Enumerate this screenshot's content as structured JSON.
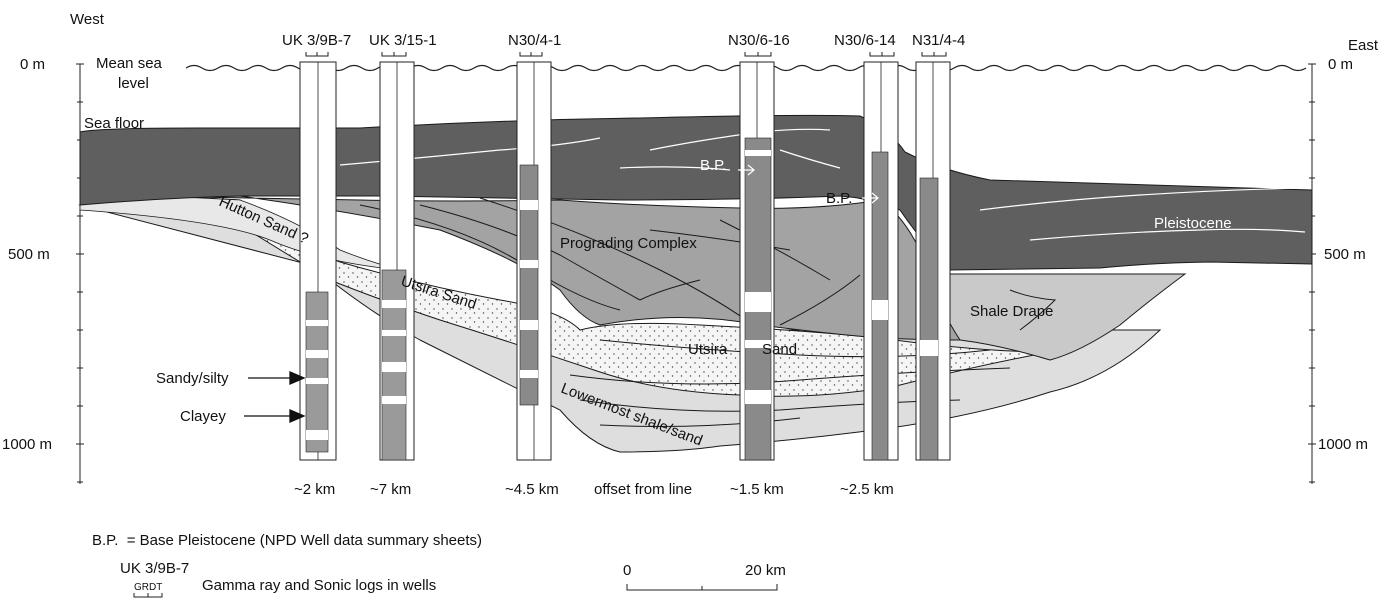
{
  "directions": {
    "west": "West",
    "east": "East"
  },
  "depth_axis": {
    "left_labels": [
      "0 m",
      "500 m",
      "1000 m"
    ],
    "right_labels": [
      "0 m",
      "500 m",
      "1000 m"
    ]
  },
  "surfaces": {
    "mean_sea_level_line1": "Mean sea",
    "mean_sea_level_line2": "level",
    "sea_floor": "Sea floor"
  },
  "wells": [
    {
      "name": "UK 3/9B-7",
      "offset": "~2 km"
    },
    {
      "name": "UK 3/15-1",
      "offset": "~7 km"
    },
    {
      "name": "N30/4-1",
      "offset": "~4.5 km"
    },
    {
      "name": "N30/6-16",
      "offset": "~1.5 km"
    },
    {
      "name": "N30/6-14",
      "offset": "~2.5 km"
    },
    {
      "name": "N31/4-4",
      "offset": ""
    }
  ],
  "offset_caption": "offset from line",
  "units": {
    "hutton_sand": "Hutton Sand ?",
    "utsira_sand_west": "Utsira Sand",
    "utsira_sand_east_1": "Utsira",
    "utsira_sand_east_2": "Sand",
    "prograding_complex": "Prograding Complex",
    "pleistocene": "Pleistocene",
    "shale_drape": "Shale Drape",
    "lowermost": "Lowermost shale/sand"
  },
  "bp_markers": [
    "B.P.",
    "B.P."
  ],
  "lithology": {
    "sandy": "Sandy/silty",
    "clayey": "Clayey"
  },
  "legend": {
    "bp_definition": "B.P.  = Base Pleistocene (NPD Well data summary sheets)",
    "well_example": "UK 3/9B-7",
    "log_header": "GRDT",
    "log_description": "Gamma ray and Sonic logs in wells"
  },
  "scale_bar": {
    "start": "0",
    "end": "20 km"
  },
  "colors": {
    "pleistocene": "#5f5f5f",
    "prograding": "#a3a3a3",
    "shale_drape": "#c9c9c9",
    "utsira_sand": "#f4f4f4",
    "lowermost": "#dedede",
    "lines": "#1a1a1a"
  }
}
